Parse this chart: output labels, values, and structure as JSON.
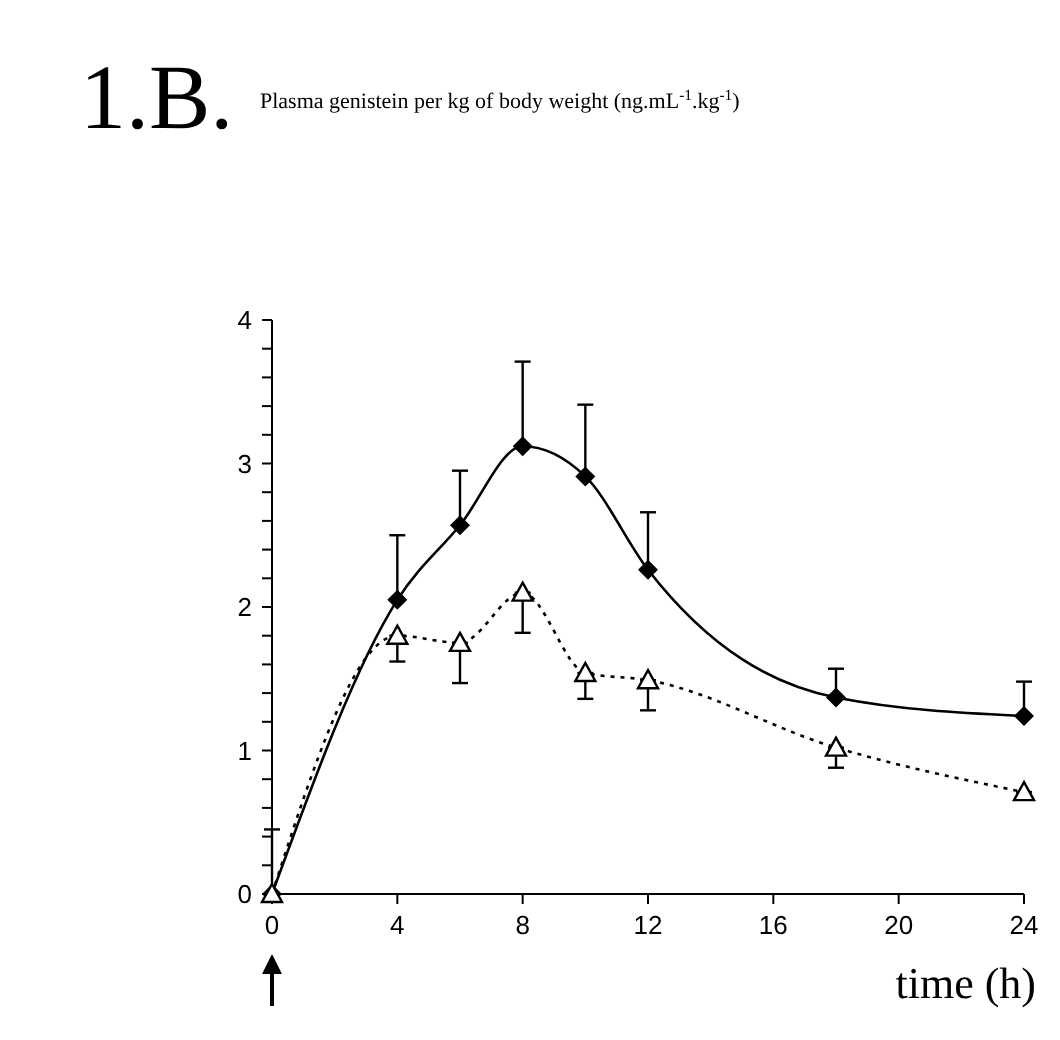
{
  "chart_data": {
    "type": "line",
    "title": "1.B.",
    "subtitle": "Plasma genistein per kg of body weight (ng.mL$^{-1}$.kg$^{-1}$)",
    "xlabel": "time (h)",
    "x": [
      0,
      4,
      6,
      8,
      10,
      12,
      18,
      24
    ],
    "series": [
      {
        "color": "#000000",
        "marker": "diamond",
        "line_style": "solid",
        "values": [
          0,
          2.05,
          2.57,
          3.12,
          2.91,
          2.26,
          1.37,
          1.24
        ],
        "errors": [
          [
            0,
            0.45
          ],
          [
            2.05,
            2.5
          ],
          [
            2.57,
            2.95
          ],
          [
            3.12,
            3.71
          ],
          [
            2.91,
            3.41
          ],
          [
            2.26,
            2.66
          ],
          [
            1.37,
            1.57
          ],
          [
            1.24,
            1.48
          ]
        ]
      },
      {
        "color": "#000000",
        "marker": "triangle",
        "line_style": "dotted",
        "values": [
          0,
          1.8,
          1.75,
          2.1,
          1.54,
          1.49,
          1.02,
          0.71
        ],
        "errors": [
          null,
          [
            1.62,
            1.8
          ],
          [
            1.47,
            1.75
          ],
          [
            1.82,
            2.1
          ],
          [
            1.36,
            1.54
          ],
          [
            1.28,
            1.49
          ],
          [
            0.88,
            1.02
          ],
          [
            0.66,
            0.71
          ]
        ]
      }
    ],
    "xlim": [
      0,
      24
    ],
    "xticks": [
      0,
      4,
      8,
      12,
      16,
      20,
      24
    ],
    "ylim": [
      0,
      4
    ],
    "yticks": [
      0,
      {
        "value": 0.2,
        "label": null
      },
      {
        "value": 0.4,
        "label": null
      },
      {
        "value": 0.6,
        "label": null
      },
      {
        "value": 0.8,
        "label": null
      },
      1,
      {
        "value": 1.2,
        "label": null
      },
      {
        "value": 1.4,
        "label": null
      },
      {
        "value": 1.6,
        "label": null
      },
      {
        "value": 1.8,
        "label": null
      },
      2,
      {
        "value": 2.2,
        "label": null
      },
      {
        "value": 2.4,
        "label": null
      },
      {
        "value": 2.6,
        "label": null
      },
      {
        "value": 2.8,
        "label": null
      },
      3,
      {
        "value": 3.2,
        "label": null
      },
      {
        "value": 3.4,
        "label": null
      },
      {
        "value": 3.6,
        "label": null
      },
      {
        "value": 3.8,
        "label": null
      },
      4
    ],
    "grid": false
  }
}
